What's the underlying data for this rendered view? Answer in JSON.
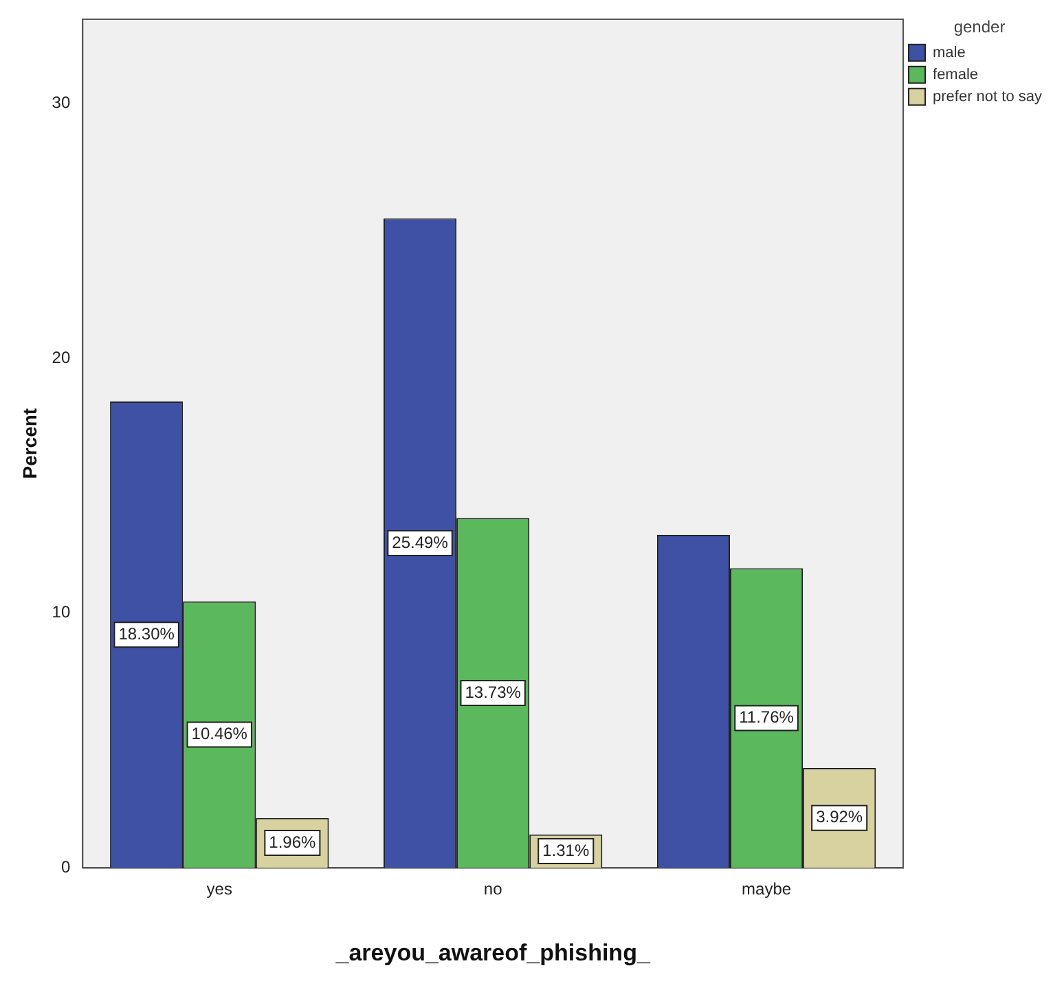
{
  "chart_data": {
    "type": "bar",
    "xlabel": "_areyou_awareof_phishing_",
    "ylabel": "Percent",
    "legend_title": "gender",
    "categories": [
      "yes",
      "no",
      "maybe"
    ],
    "series": [
      {
        "name": "male",
        "color": "#3f51a5",
        "values": [
          18.3,
          25.49,
          13.07
        ],
        "value_labels": [
          "18.30%",
          "25.49%",
          null
        ]
      },
      {
        "name": "female",
        "color": "#5cb85c",
        "values": [
          10.46,
          13.73,
          11.76
        ],
        "value_labels": [
          "10.46%",
          "13.73%",
          "11.76%"
        ]
      },
      {
        "name": "prefer not to say",
        "color": "#d8d1a0",
        "values": [
          1.96,
          1.31,
          3.92
        ],
        "value_labels": [
          "1.96%",
          "1.31%",
          "3.92%"
        ]
      }
    ],
    "ylim": [
      0,
      33.3
    ],
    "yticks": [
      0,
      10,
      20,
      30
    ],
    "grid": false,
    "legend": "top right"
  }
}
